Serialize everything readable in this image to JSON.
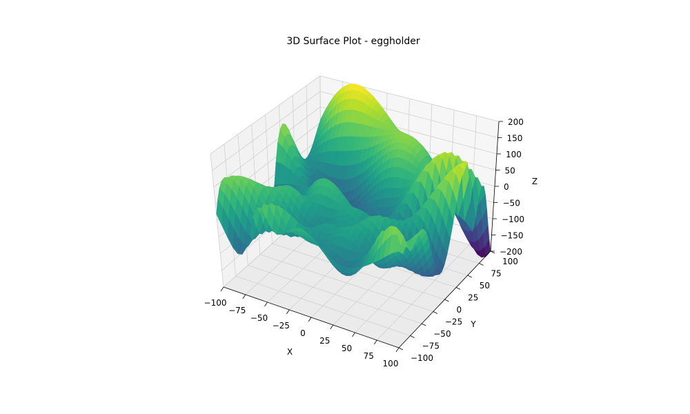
{
  "chart_data": {
    "type": "surface3d",
    "title": "3D Surface Plot - eggholder",
    "xlabel": "X",
    "ylabel": "Y",
    "zlabel": "Z",
    "xlim": [
      -100,
      100
    ],
    "ylim": [
      -100,
      100
    ],
    "zlim": [
      -200,
      200
    ],
    "x_ticks": [
      "−100",
      "−75",
      "−50",
      "−25",
      "0",
      "25",
      "50",
      "75",
      "100"
    ],
    "y_ticks": [
      "−100",
      "−75",
      "−50",
      "−25",
      "0",
      "25",
      "50",
      "75",
      "100"
    ],
    "z_ticks": [
      "−200",
      "−150",
      "−100",
      "−50",
      "0",
      "50",
      "100",
      "150",
      "200"
    ],
    "x_tick_values": [
      -100,
      -75,
      -50,
      -25,
      0,
      25,
      50,
      75,
      100
    ],
    "y_tick_values": [
      -100,
      -75,
      -50,
      -25,
      0,
      25,
      50,
      75,
      100
    ],
    "z_tick_values": [
      -200,
      -150,
      -100,
      -50,
      0,
      50,
      100,
      150,
      200
    ],
    "function": "eggholder",
    "colormap": "viridis",
    "colormap_stops": [
      "#440154",
      "#482878",
      "#3e4989",
      "#31688e",
      "#26828e",
      "#1f9e89",
      "#35b779",
      "#6ece58",
      "#b5de2b",
      "#fde725"
    ],
    "grid": true
  }
}
